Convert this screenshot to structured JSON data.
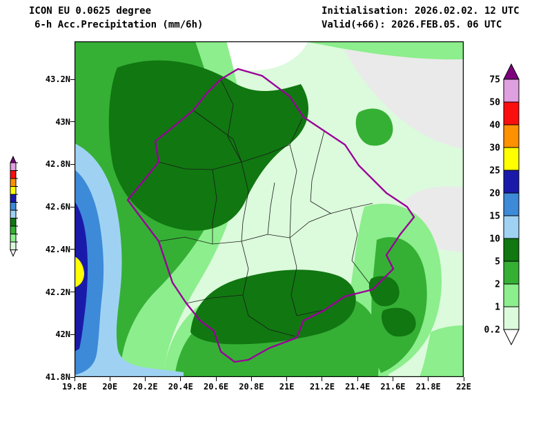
{
  "header": {
    "model": "ICON EU 0.0625 degree",
    "product": "6-h Acc.Precipitation (mm/6h)",
    "initialisation": "Initialisation: 2026.02.02. 12 UTC",
    "valid": "Valid(+66): 2026.FEB.05. 06 UTC"
  },
  "axes": {
    "x_ticks": [
      "19.8E",
      "20E",
      "20.2E",
      "20.4E",
      "20.6E",
      "20.8E",
      "21E",
      "21.2E",
      "21.4E",
      "21.6E",
      "21.8E",
      "22E"
    ],
    "y_ticks": [
      "43.2N",
      "43N",
      "42.8N",
      "42.6N",
      "42.4N",
      "42.2N",
      "42N",
      "41.8N"
    ]
  },
  "legend": {
    "unit": "mm/6h",
    "levels_desc": [
      "75",
      "50",
      "40",
      "30",
      "25",
      "20",
      "15",
      "10",
      "5",
      "2",
      "1",
      "0.2"
    ],
    "palette": {
      "below": "#ffffff",
      "0.2": "#dcfadc",
      "1": "#8cee8c",
      "2": "#35b035",
      "5": "#117711",
      "10": "#9fd2f2",
      "15": "#3d8ad8",
      "20": "#1a1aaa",
      "25": "#ffff00",
      "30": "#ff9100",
      "40": "#fb0e0e",
      "50": "#dfa0df",
      "75": "#7d007d",
      "nodata": "#eaeaea"
    }
  },
  "map": {
    "border_color": "#990099",
    "admin_line_color": "#1a1a1a",
    "frame_color": "#000000"
  }
}
